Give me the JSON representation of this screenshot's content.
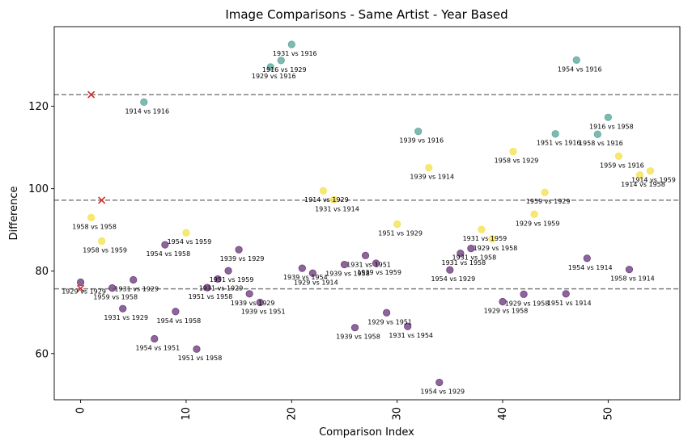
{
  "chart_data": {
    "type": "scatter",
    "title": "Image Comparisons - Same Artist - Year Based",
    "xlabel": "Comparison Index",
    "ylabel": "Difference",
    "xlim": [
      -2.5,
      56.8
    ],
    "ylim": [
      48.8,
      139.3
    ],
    "x_ticks": [
      0,
      10,
      20,
      30,
      40,
      50
    ],
    "y_ticks": [
      60,
      80,
      100,
      120
    ],
    "grid": false,
    "thresholds": [
      122.8,
      97.2,
      75.7
    ],
    "colors": {
      "high": "#5fa89f",
      "mid": "#f5e254",
      "low": "#6f3f7f",
      "threshold_line": "#808080",
      "marker_x": "#d62728"
    },
    "x_markers": [
      {
        "x": 0,
        "y": 75.8
      },
      {
        "x": 1,
        "y": 122.8
      },
      {
        "x": 2,
        "y": 97.2
      }
    ],
    "points": [
      {
        "x": 0,
        "y": 77.3,
        "group": "low",
        "label": "1929 vs 1929"
      },
      {
        "x": 1,
        "y": 93.0,
        "group": "mid",
        "label": "1958 vs 1958"
      },
      {
        "x": 2,
        "y": 87.3,
        "group": "mid",
        "label": "1958 vs 1959"
      },
      {
        "x": 3,
        "y": 75.9,
        "group": "low",
        "label": "1959 vs 1958"
      },
      {
        "x": 4,
        "y": 70.9,
        "group": "low",
        "label": "1931 vs 1929"
      },
      {
        "x": 5,
        "y": 77.9,
        "group": "low",
        "label": "1931 vs 1929"
      },
      {
        "x": 6,
        "y": 121.0,
        "group": "high",
        "label": "1914 vs 1916"
      },
      {
        "x": 7,
        "y": 63.6,
        "group": "low",
        "label": "1954 vs 1951"
      },
      {
        "x": 8,
        "y": 86.4,
        "group": "low",
        "label": "1954 vs 1958"
      },
      {
        "x": 9,
        "y": 70.2,
        "group": "low",
        "label": "1954 vs 1958"
      },
      {
        "x": 10,
        "y": 89.3,
        "group": "mid",
        "label": "1954 vs 1959"
      },
      {
        "x": 11,
        "y": 61.1,
        "group": "low",
        "label": "1951 vs 1958"
      },
      {
        "x": 12,
        "y": 76.0,
        "group": "low",
        "label": "1951 vs 1958"
      },
      {
        "x": 13,
        "y": 78.1,
        "group": "low",
        "label": "1931 vs 1929"
      },
      {
        "x": 14,
        "y": 80.1,
        "group": "low",
        "label": "1951 vs 1959"
      },
      {
        "x": 15,
        "y": 85.2,
        "group": "low",
        "label": "1939 vs 1929"
      },
      {
        "x": 16,
        "y": 74.5,
        "group": "low",
        "label": "1939 vs 1929"
      },
      {
        "x": 17,
        "y": 72.4,
        "group": "low",
        "label": "1939 vs 1951"
      },
      {
        "x": 18,
        "y": 129.5,
        "group": "high",
        "label": "1929 vs 1916"
      },
      {
        "x": 19,
        "y": 131.1,
        "group": "high",
        "label": "1916 vs 1929"
      },
      {
        "x": 20,
        "y": 135.0,
        "group": "high",
        "label": "1931 vs 1916"
      },
      {
        "x": 21,
        "y": 80.7,
        "group": "low",
        "label": "1939 vs 1954"
      },
      {
        "x": 22,
        "y": 79.5,
        "group": "low",
        "label": "1929 vs 1914"
      },
      {
        "x": 23,
        "y": 99.5,
        "group": "mid",
        "label": "1914 vs 1929"
      },
      {
        "x": 24,
        "y": 97.3,
        "group": "mid",
        "label": "1931 vs 1914"
      },
      {
        "x": 25,
        "y": 81.6,
        "group": "low",
        "label": "1939 vs 1958"
      },
      {
        "x": 26,
        "y": 66.3,
        "group": "low",
        "label": "1939 vs 1958"
      },
      {
        "x": 27,
        "y": 83.8,
        "group": "low",
        "label": "1931 vs 1951"
      },
      {
        "x": 28,
        "y": 81.9,
        "group": "low",
        "label": "1939 vs 1959"
      },
      {
        "x": 29,
        "y": 69.9,
        "group": "low",
        "label": "1929 vs 1951"
      },
      {
        "x": 30,
        "y": 91.4,
        "group": "mid",
        "label": "1951 vs 1929"
      },
      {
        "x": 31,
        "y": 66.6,
        "group": "low",
        "label": "1931 vs 1954"
      },
      {
        "x": 32,
        "y": 113.9,
        "group": "high",
        "label": "1939 vs 1916"
      },
      {
        "x": 33,
        "y": 105.1,
        "group": "mid",
        "label": "1939 vs 1914"
      },
      {
        "x": 34,
        "y": 53.0,
        "group": "low",
        "label": "1954 vs 1929"
      },
      {
        "x": 35,
        "y": 80.3,
        "group": "low",
        "label": "1954 vs 1929"
      },
      {
        "x": 36,
        "y": 84.3,
        "group": "low",
        "label": "1931 vs 1958"
      },
      {
        "x": 37,
        "y": 85.5,
        "group": "low",
        "label": "1931 vs 1958"
      },
      {
        "x": 38,
        "y": 90.1,
        "group": "mid",
        "label": "1931 vs 1959"
      },
      {
        "x": 39,
        "y": 87.8,
        "group": "mid",
        "label": "1929 vs 1958"
      },
      {
        "x": 40,
        "y": 72.6,
        "group": "low",
        "label": "1929 vs 1958"
      },
      {
        "x": 41,
        "y": 109.0,
        "group": "mid",
        "label": "1958 vs 1929"
      },
      {
        "x": 42,
        "y": 74.4,
        "group": "low",
        "label": "1929 vs 1958"
      },
      {
        "x": 43,
        "y": 93.8,
        "group": "mid",
        "label": "1929 vs 1959"
      },
      {
        "x": 44,
        "y": 99.1,
        "group": "mid",
        "label": "1959 vs 1929"
      },
      {
        "x": 45,
        "y": 113.3,
        "group": "high",
        "label": "1951 vs 1916"
      },
      {
        "x": 46,
        "y": 74.5,
        "group": "low",
        "label": "1951 vs 1914"
      },
      {
        "x": 47,
        "y": 131.2,
        "group": "high",
        "label": "1954 vs 1916"
      },
      {
        "x": 48,
        "y": 83.1,
        "group": "low",
        "label": "1954 vs 1914"
      },
      {
        "x": 49,
        "y": 113.2,
        "group": "high",
        "label": "1958 vs 1916"
      },
      {
        "x": 50,
        "y": 117.3,
        "group": "high",
        "label": "1916 vs 1958"
      },
      {
        "x": 51,
        "y": 107.9,
        "group": "mid",
        "label": "1959 vs 1916"
      },
      {
        "x": 52,
        "y": 80.4,
        "group": "low",
        "label": "1958 vs 1914"
      },
      {
        "x": 53,
        "y": 103.3,
        "group": "mid",
        "label": "1914 vs 1958"
      },
      {
        "x": 54,
        "y": 104.3,
        "group": "mid",
        "label": "1914 vs 1959"
      }
    ]
  }
}
